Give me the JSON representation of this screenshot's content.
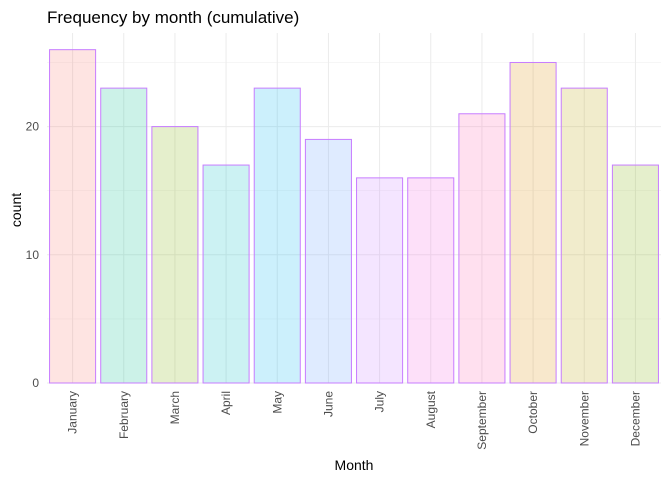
{
  "chart_data": {
    "type": "bar",
    "title": "Frequency by month (cumulative)",
    "xlabel": "Month",
    "ylabel": "count",
    "categories": [
      "January",
      "February",
      "March",
      "April",
      "May",
      "June",
      "July",
      "August",
      "September",
      "October",
      "November",
      "December"
    ],
    "values": [
      26,
      23,
      20,
      17,
      23,
      19,
      16,
      16,
      21,
      25,
      23,
      17
    ],
    "ylim": [
      0,
      27.3
    ],
    "yticks": [
      0,
      10,
      20
    ],
    "ytick_labels": [
      "0",
      "10",
      "20"
    ],
    "grid": true,
    "legend": "none",
    "bar_outline_color": "#c77cff",
    "bar_fill_colors": [
      "#f8766d",
      "#00c08b",
      "#7cae00",
      "#00bfc4",
      "#00b4f0",
      "#619cff",
      "#c77cff",
      "#f564e3",
      "#ff64b0",
      "#de8c00",
      "#b79f00",
      "#7cae00"
    ],
    "bar_fill_opacity": 0.2
  }
}
